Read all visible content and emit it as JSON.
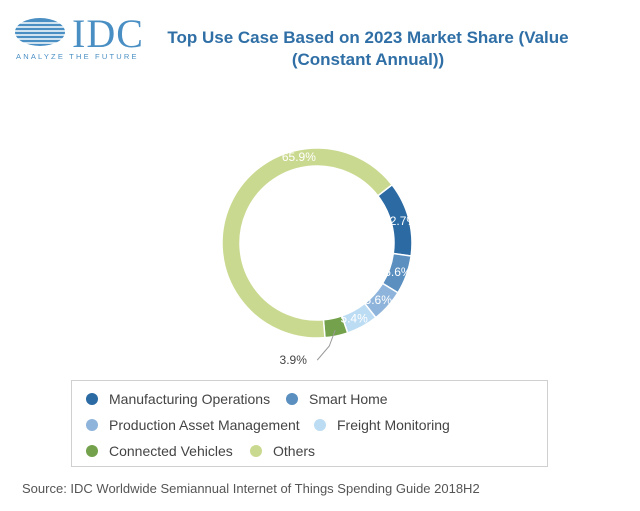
{
  "logo": {
    "name": "IDC",
    "tagline": "ANALYZE THE FUTURE"
  },
  "chart_data": {
    "type": "pie",
    "donut": true,
    "title": "Top Use Case Based on 2023 Market Share (Value (Constant Annual))",
    "categories": [
      "Manufacturing Operations",
      "Smart Home",
      "Production Asset Management",
      "Freight Monitoring",
      "Connected Vehicles",
      "Others"
    ],
    "values": [
      12.7,
      6.6,
      5.6,
      5.4,
      3.9,
      65.9
    ],
    "labels": [
      "12.7%",
      "6.6%",
      "5.6%",
      "5.4%",
      "3.9%",
      "65.9%"
    ],
    "colors": [
      "#2b6aa3",
      "#5a8fc0",
      "#8fb4db",
      "#bcdcf3",
      "#74a24c",
      "#c9d98f"
    ],
    "legend_position": "bottom"
  },
  "source": "Source: IDC Worldwide Semiannual Internet of Things Spending Guide 2018H2"
}
